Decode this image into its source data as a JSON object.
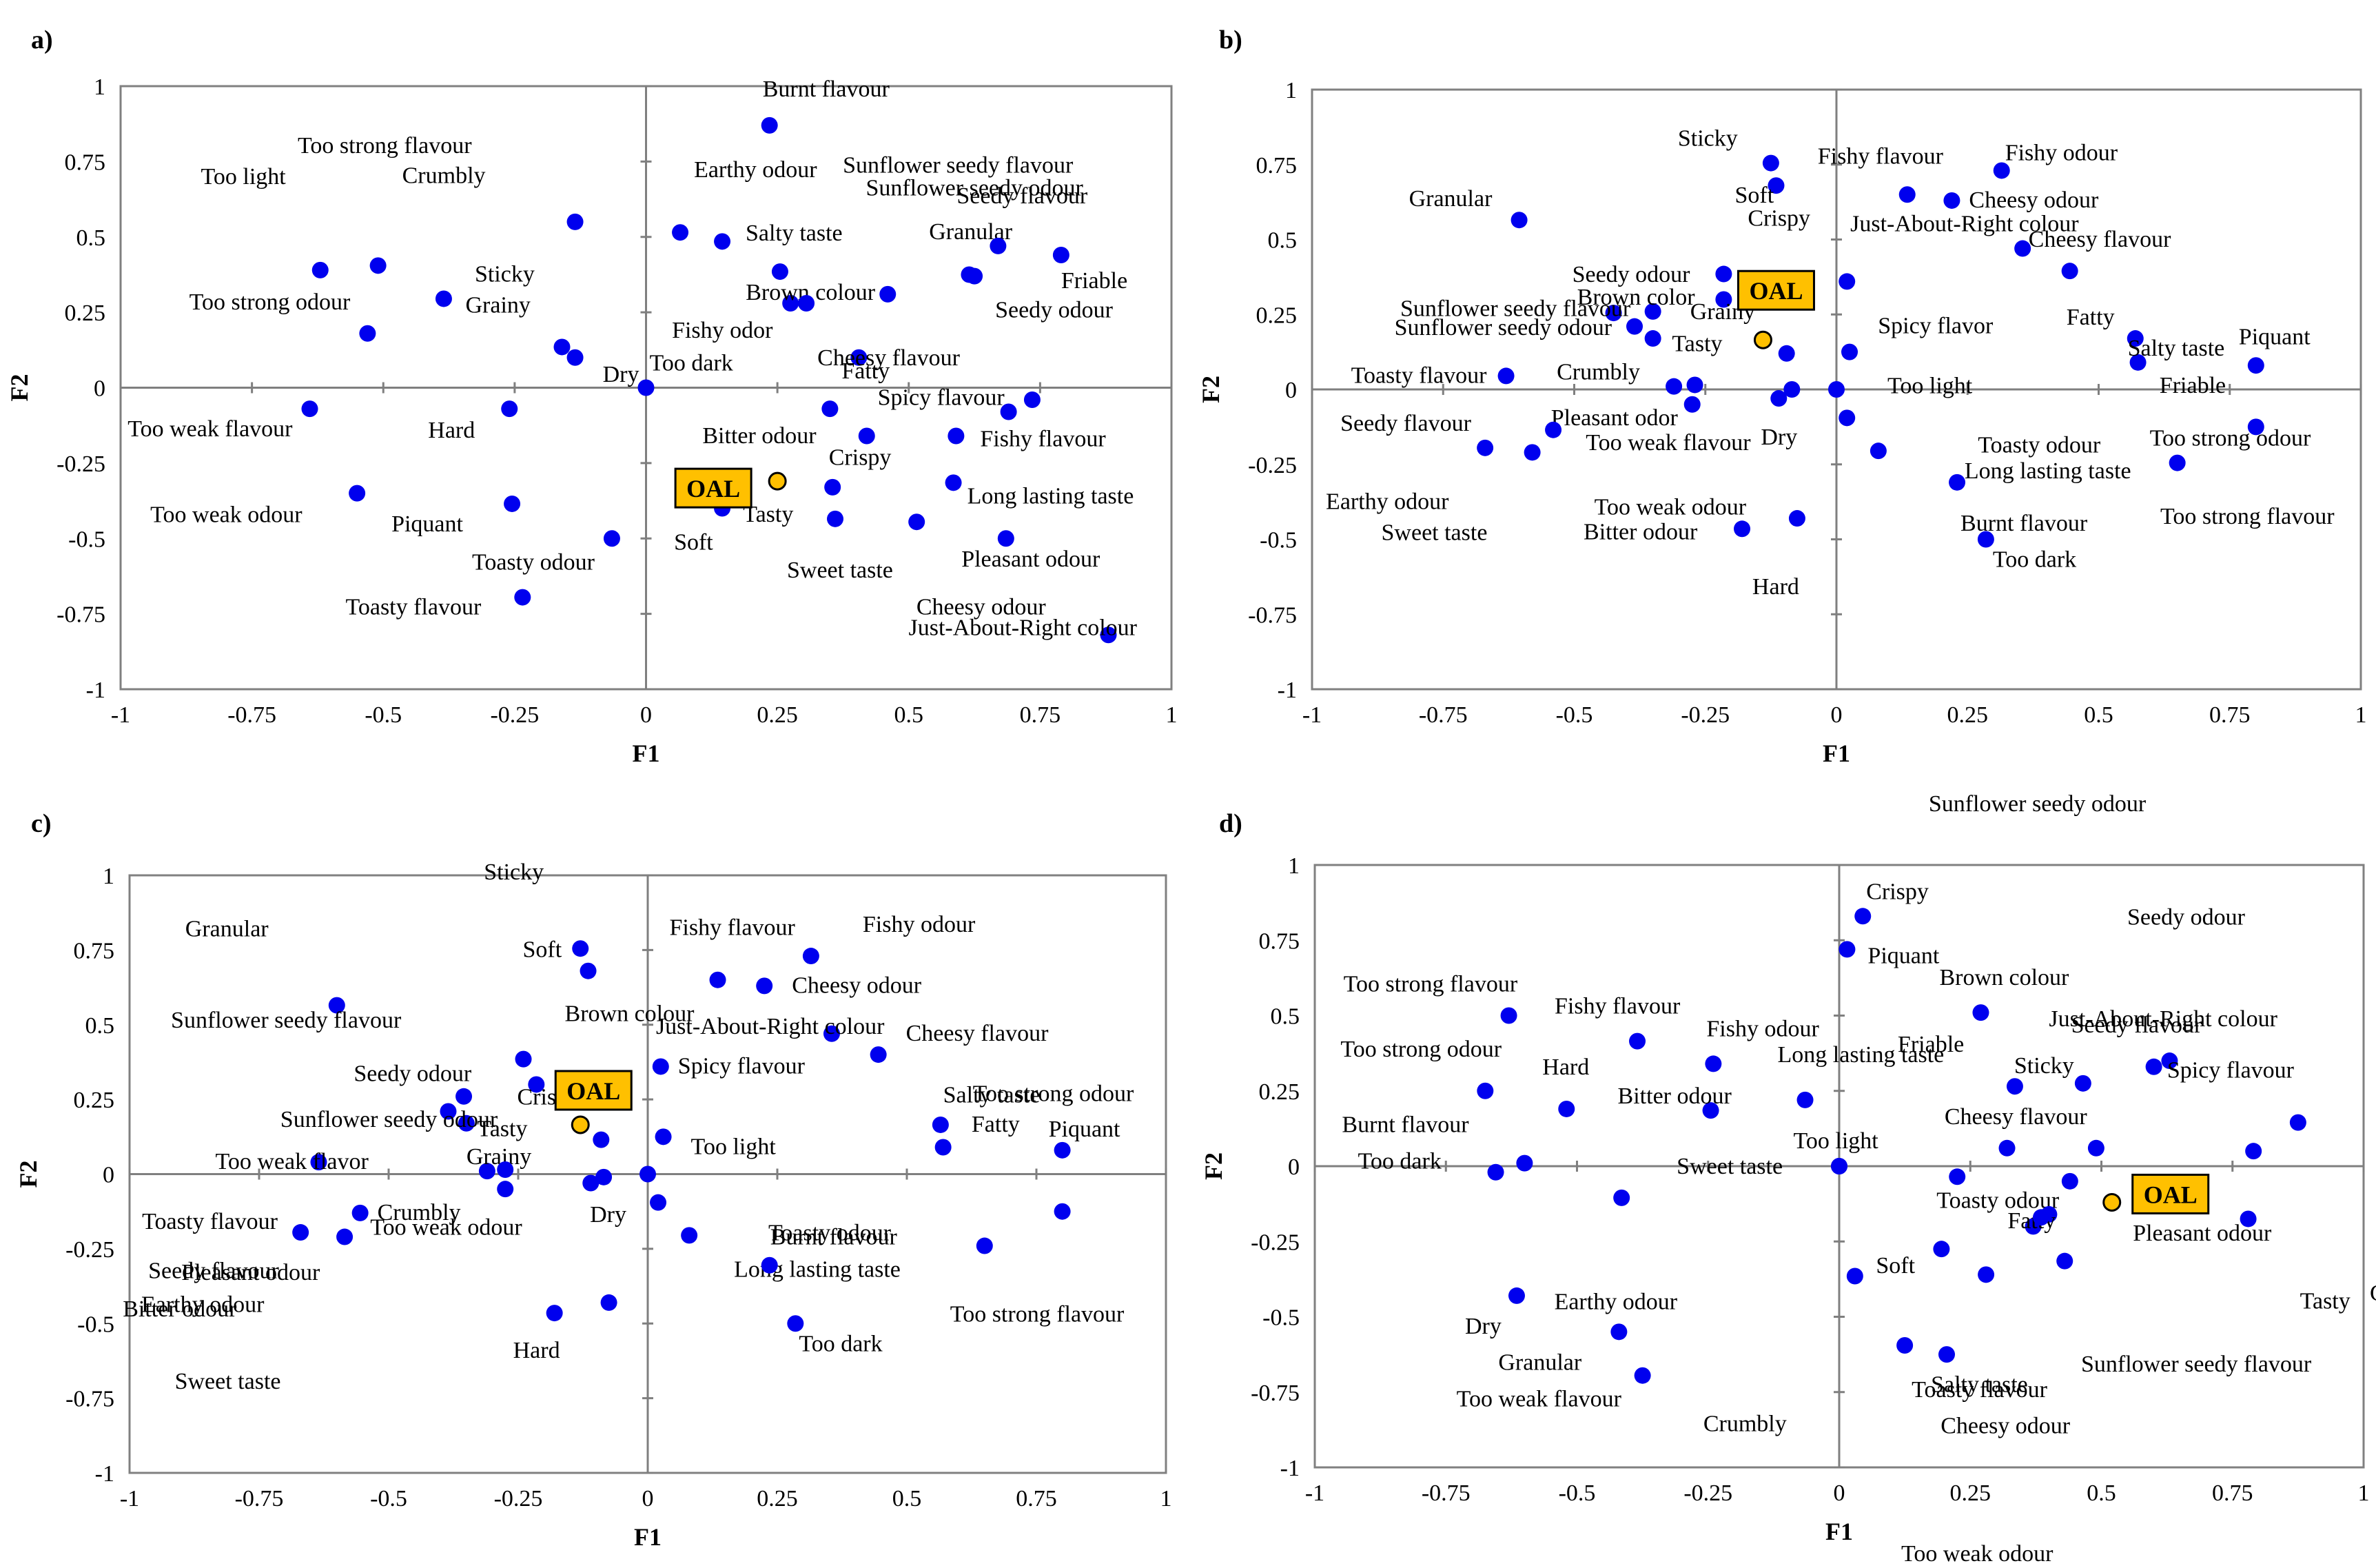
{
  "figure": {
    "panel_labels": [
      "a)",
      "b)",
      "c)",
      "d)"
    ]
  },
  "colors": {
    "point": "#0000ee",
    "oal_fill": "#ffc000",
    "oal_stroke": "#000000",
    "axis": "#7f7f7f",
    "frame": "#808080"
  },
  "chart_data": [
    {
      "type": "scatter",
      "panel": "a)",
      "xlabel": "F1",
      "ylabel": "F2",
      "xlim": [
        -1,
        1
      ],
      "ylim": [
        -1,
        1
      ],
      "xticks": [
        "-1",
        "-0.75",
        "-0.5",
        "-0.25",
        "0",
        "0.25",
        "0.5",
        "0.75",
        "1"
      ],
      "yticks": [
        "-1",
        "-0.75",
        "-0.5",
        "-0.25",
        "0",
        "0.25",
        "0.5",
        "0.75",
        "1"
      ],
      "highlight": {
        "label": "OAL",
        "x": 0.25,
        "y": -0.31
      },
      "points": [
        {
          "label": "Burnt flavour",
          "x": 0.235,
          "y": 0.87
        },
        {
          "label": "Too strong flavour",
          "x": -0.135,
          "y": 0.55
        },
        {
          "label": "Earthy odour",
          "x": 0.065,
          "y": 0.515
        },
        {
          "label": "Sunflower seedy flavour",
          "x": 0.145,
          "y": 0.485
        },
        {
          "label": "Too light",
          "x": -0.62,
          "y": 0.39
        },
        {
          "label": "Crumbly",
          "x": -0.51,
          "y": 0.405
        },
        {
          "label": "Salty taste",
          "x": 0.255,
          "y": 0.385
        },
        {
          "label": "Sunflower seedy odour",
          "x": 0.615,
          "y": 0.375
        },
        {
          "label": "Granular",
          "x": 0.46,
          "y": 0.31
        },
        {
          "label": "Seedy flavour",
          "x": 0.67,
          "y": 0.47
        },
        {
          "label": "Sticky",
          "x": -0.385,
          "y": 0.295
        },
        {
          "label": "Brown colour",
          "x": 0.275,
          "y": 0.28
        },
        {
          "label": "Friable",
          "x": 0.79,
          "y": 0.44
        },
        {
          "label": "Too strong odour",
          "x": -0.53,
          "y": 0.18
        },
        {
          "label": "Grainy",
          "x": -0.16,
          "y": 0.135
        },
        {
          "label": "Fishy odor",
          "x": 0.305,
          "y": 0.28
        },
        {
          "label": "Fatty",
          "x": 0.405,
          "y": 0.1
        },
        {
          "label": "Seedy odour",
          "x": 0.625,
          "y": 0.37
        },
        {
          "label": "Dry",
          "x": -0.135,
          "y": 0.1
        },
        {
          "label": "Too dark",
          "x": 0.0,
          "y": 0.0
        },
        {
          "label": "Cheesy flavour",
          "x": 0.735,
          "y": -0.04
        },
        {
          "label": "Too weak flavour",
          "x": -0.64,
          "y": -0.07
        },
        {
          "label": "Hard",
          "x": -0.26,
          "y": -0.07
        },
        {
          "label": "Bitter odour",
          "x": 0.35,
          "y": -0.07
        },
        {
          "label": "Spicy flavour",
          "x": 0.69,
          "y": -0.08
        },
        {
          "label": "Fishy flavour",
          "x": 0.59,
          "y": -0.16
        },
        {
          "label": "Crispy",
          "x": 0.42,
          "y": -0.16
        },
        {
          "label": "Too weak odour",
          "x": -0.55,
          "y": -0.35
        },
        {
          "label": "Piquant",
          "x": -0.255,
          "y": -0.385
        },
        {
          "label": "Tasty",
          "x": 0.355,
          "y": -0.33
        },
        {
          "label": "Long lasting taste",
          "x": 0.585,
          "y": -0.315
        },
        {
          "label": "Soft",
          "x": 0.145,
          "y": -0.4
        },
        {
          "label": "Toasty odour",
          "x": -0.065,
          "y": -0.5
        },
        {
          "label": "Sweet taste",
          "x": 0.36,
          "y": -0.435
        },
        {
          "label": "Pleasant odour",
          "x": 0.515,
          "y": -0.445
        },
        {
          "label": "Cheesy odour",
          "x": 0.685,
          "y": -0.5
        },
        {
          "label": "Toasty flavour",
          "x": -0.235,
          "y": -0.695
        },
        {
          "label": "Just-About-Right colour",
          "x": 0.88,
          "y": -0.82
        }
      ]
    },
    {
      "type": "scatter",
      "panel": "b)",
      "xlabel": "F1",
      "ylabel": "F2",
      "xlim": [
        -1,
        1
      ],
      "ylim": [
        -1,
        1
      ],
      "xticks": [
        "-1",
        "-0.75",
        "-0.5",
        "-0.25",
        "0",
        "0.25",
        "0.5",
        "0.75",
        "1"
      ],
      "yticks": [
        "-1",
        "-0.75",
        "-0.5",
        "-0.25",
        "0",
        "0.25",
        "0.5",
        "0.75",
        "1"
      ],
      "highlight": {
        "label": "OAL",
        "x": -0.14,
        "y": 0.165
      },
      "points": [
        {
          "label": "Sticky",
          "x": -0.125,
          "y": 0.755
        },
        {
          "label": "Soft",
          "x": -0.115,
          "y": 0.68
        },
        {
          "label": "Fishy flavour",
          "x": 0.135,
          "y": 0.65
        },
        {
          "label": "Fishy odour",
          "x": 0.315,
          "y": 0.73
        },
        {
          "label": "Cheesy odour",
          "x": 0.22,
          "y": 0.63
        },
        {
          "label": "Granular",
          "x": -0.605,
          "y": 0.565
        },
        {
          "label": "Crispy",
          "x": -0.215,
          "y": 0.385
        },
        {
          "label": "Just-About-Right colour",
          "x": 0.355,
          "y": 0.47
        },
        {
          "label": "Cheesy flavour",
          "x": 0.445,
          "y": 0.395
        },
        {
          "label": "Brown color",
          "x": -0.35,
          "y": 0.26
        },
        {
          "label": "Seedy odour",
          "x": -0.425,
          "y": 0.255
        },
        {
          "label": "Sunflower seedy flavour",
          "x": -0.385,
          "y": 0.21
        },
        {
          "label": "Sunflower seedy odour",
          "x": -0.35,
          "y": 0.17
        },
        {
          "label": "Tasty",
          "x": -0.215,
          "y": 0.3
        },
        {
          "label": "Spicy flavor",
          "x": 0.02,
          "y": 0.36
        },
        {
          "label": "Fatty",
          "x": 0.57,
          "y": 0.17
        },
        {
          "label": "Too light",
          "x": 0.025,
          "y": 0.125
        },
        {
          "label": "Salty taste",
          "x": 0.575,
          "y": 0.09
        },
        {
          "label": "Friable",
          "x": 0.8,
          "y": 0.08
        },
        {
          "label": "Piquant",
          "x": 0.8,
          "y": -0.125
        },
        {
          "label": "Toasty flavour",
          "x": -0.63,
          "y": 0.045
        },
        {
          "label": "Crumbly",
          "x": -0.31,
          "y": 0.01
        },
        {
          "label": "Grainy",
          "x": -0.095,
          "y": 0.12
        },
        {
          "label": "Pleasant odor",
          "x": -0.275,
          "y": -0.05
        },
        {
          "label": "Dry",
          "x": -0.085,
          "y": 0.0
        },
        {
          "label": "Too weak flavour",
          "x": -0.11,
          "y": -0.03
        },
        {
          "label": "Toasty odour",
          "x": 0.02,
          "y": -0.095
        },
        {
          "label": "Seedy flavour",
          "x": -0.67,
          "y": -0.195
        },
        {
          "label": "Too weak odour",
          "x": -0.58,
          "y": -0.21
        },
        {
          "label": "Earthy odour",
          "x": -0.54,
          "y": -0.135
        },
        {
          "label": "Long lasting taste",
          "x": 0.08,
          "y": -0.205
        },
        {
          "label": "Too strong odour",
          "x": 0.65,
          "y": -0.245
        },
        {
          "label": "Burnt flavour",
          "x": 0.23,
          "y": -0.31
        },
        {
          "label": "Too dark",
          "x": 0.285,
          "y": -0.5
        },
        {
          "label": "Bitter odour",
          "x": -0.18,
          "y": -0.465
        },
        {
          "label": "Hard",
          "x": -0.075,
          "y": -0.43
        },
        {
          "label": "Sweet taste",
          "x": -0.27,
          "y": 0.015
        },
        {
          "label": "Too strong flavour",
          "x": 0.0,
          "y": 0.0
        }
      ]
    },
    {
      "type": "scatter",
      "panel": "c)",
      "xlabel": "F1",
      "ylabel": "F2",
      "xlim": [
        -1,
        1
      ],
      "ylim": [
        -1,
        1
      ],
      "xticks": [
        "-1",
        "-0.75",
        "-0.5",
        "-0.25",
        "0",
        "0.25",
        "0.5",
        "0.75",
        "1"
      ],
      "yticks": [
        "-1",
        "-0.75",
        "-0.5",
        "-0.25",
        "0",
        "0.25",
        "0.5",
        "0.75",
        "1"
      ],
      "highlight": {
        "label": "OAL",
        "x": -0.13,
        "y": 0.165
      },
      "points": [
        {
          "label": "Sticky",
          "x": -0.13,
          "y": 0.755
        },
        {
          "label": "Soft",
          "x": -0.115,
          "y": 0.68
        },
        {
          "label": "Fishy flavour",
          "x": 0.135,
          "y": 0.65
        },
        {
          "label": "Fishy odour",
          "x": 0.315,
          "y": 0.73
        },
        {
          "label": "Cheesy odour",
          "x": 0.225,
          "y": 0.63
        },
        {
          "label": "Granular",
          "x": -0.6,
          "y": 0.565
        },
        {
          "label": "Just-About-Right colour",
          "x": 0.355,
          "y": 0.47
        },
        {
          "label": "Cheesy flavour",
          "x": 0.445,
          "y": 0.4
        },
        {
          "label": "Brown colour",
          "x": -0.24,
          "y": 0.385
        },
        {
          "label": "Seedy odour",
          "x": -0.215,
          "y": 0.3
        },
        {
          "label": "Sunflower seedy flavour",
          "x": -0.355,
          "y": 0.26
        },
        {
          "label": "Crispy",
          "x": -0.385,
          "y": 0.21
        },
        {
          "label": "Sunflower seedy odour",
          "x": -0.35,
          "y": 0.17
        },
        {
          "label": "Spicy flavour",
          "x": 0.025,
          "y": 0.36
        },
        {
          "label": "Fatty",
          "x": 0.565,
          "y": 0.165
        },
        {
          "label": "Too light",
          "x": 0.03,
          "y": 0.125
        },
        {
          "label": "Salty taste",
          "x": 0.57,
          "y": 0.09
        },
        {
          "label": "Piquant",
          "x": 0.8,
          "y": 0.08
        },
        {
          "label": "Tasty",
          "x": -0.09,
          "y": 0.115
        },
        {
          "label": "Grainy",
          "x": -0.31,
          "y": 0.01
        },
        {
          "label": "Too weak flavor",
          "x": -0.635,
          "y": 0.04
        },
        {
          "label": "Dry",
          "x": -0.085,
          "y": -0.01
        },
        {
          "label": "Too weak odour",
          "x": -0.11,
          "y": -0.03
        },
        {
          "label": "Crumbly",
          "x": -0.555,
          "y": -0.13
        },
        {
          "label": "Toasty flavour",
          "x": -0.67,
          "y": -0.195
        },
        {
          "label": "Seedy flavour",
          "x": -0.585,
          "y": -0.21
        },
        {
          "label": "Pleasant odour",
          "x": -0.275,
          "y": 0.015
        },
        {
          "label": "Bitter odour",
          "x": -0.275,
          "y": -0.05
        },
        {
          "label": "Toasty odour",
          "x": 0.02,
          "y": -0.095
        },
        {
          "label": "Long lasting taste",
          "x": 0.08,
          "y": -0.205
        },
        {
          "label": "Too strong odour",
          "x": 0.8,
          "y": -0.125
        },
        {
          "label": "Too strong flavour",
          "x": 0.65,
          "y": -0.24
        },
        {
          "label": "Burnt flavour",
          "x": 0.235,
          "y": -0.305
        },
        {
          "label": "Too dark",
          "x": 0.285,
          "y": -0.5
        },
        {
          "label": "Hard",
          "x": -0.18,
          "y": -0.465
        },
        {
          "label": "Sweet taste",
          "x": -0.075,
          "y": -0.43
        },
        {
          "label": "Earthy odour",
          "x": 0.0,
          "y": 0.0
        }
      ]
    },
    {
      "type": "scatter",
      "panel": "d)",
      "xlabel": "F1",
      "ylabel": "F2",
      "xlim": [
        -1,
        1
      ],
      "ylim": [
        -1,
        1
      ],
      "xticks": [
        "-1",
        "-0.75",
        "-0.5",
        "-0.25",
        "0",
        "0.25",
        "0.5",
        "0.75",
        "1"
      ],
      "yticks": [
        "-1",
        "-0.75",
        "-0.5",
        "-0.25",
        "0",
        "0.25",
        "0.5",
        "0.75",
        "1"
      ],
      "highlight": {
        "label": "OAL",
        "x": 0.52,
        "y": -0.12
      },
      "points": [
        {
          "label": "Crispy",
          "x": 0.045,
          "y": 0.83
        },
        {
          "label": "Piquant",
          "x": 0.015,
          "y": 0.72
        },
        {
          "label": "Too strong flavour",
          "x": -0.63,
          "y": 0.5
        },
        {
          "label": "Fishy flavour",
          "x": -0.385,
          "y": 0.415
        },
        {
          "label": "Fishy odour",
          "x": -0.24,
          "y": 0.34
        },
        {
          "label": "Brown colour",
          "x": 0.27,
          "y": 0.51
        },
        {
          "label": "Seedy flavour",
          "x": 0.6,
          "y": 0.33
        },
        {
          "label": "Just-About-Right colour",
          "x": 0.63,
          "y": 0.35
        },
        {
          "label": "Too strong odour",
          "x": -0.675,
          "y": 0.25
        },
        {
          "label": "Hard",
          "x": -0.52,
          "y": 0.19
        },
        {
          "label": "Long lasting taste",
          "x": -0.065,
          "y": 0.22
        },
        {
          "label": "Friable",
          "x": 0.335,
          "y": 0.265
        },
        {
          "label": "Sticky",
          "x": 0.465,
          "y": 0.275
        },
        {
          "label": "Bitter odour",
          "x": -0.245,
          "y": 0.185
        },
        {
          "label": "Spicy flavour",
          "x": 0.875,
          "y": 0.145
        },
        {
          "label": "Cheesy flavour",
          "x": 0.49,
          "y": 0.06
        },
        {
          "label": "Too light",
          "x": 0.32,
          "y": 0.06
        },
        {
          "label": "Burnt flavour",
          "x": -0.6,
          "y": 0.01
        },
        {
          "label": "Too dark",
          "x": -0.655,
          "y": -0.02
        },
        {
          "label": "Pleasant odour",
          "x": 0.79,
          "y": 0.05
        },
        {
          "label": "Toasty odour",
          "x": 0.225,
          "y": -0.035
        },
        {
          "label": "Sweet taste",
          "x": -0.415,
          "y": -0.105
        },
        {
          "label": "Tasty",
          "x": 0.78,
          "y": -0.175
        },
        {
          "label": "Earthy odour",
          "x": 0.37,
          "y": -0.2
        },
        {
          "label": "Soft",
          "x": 0.195,
          "y": -0.275
        },
        {
          "label": "Fatty",
          "x": 0.4,
          "y": -0.16
        },
        {
          "label": "Crumbly",
          "x": 0.03,
          "y": -0.365
        },
        {
          "label": "Salty taste",
          "x": 0.28,
          "y": -0.36
        },
        {
          "label": "Cheesy odour",
          "x": 0.43,
          "y": -0.315
        },
        {
          "label": "Sunflower seedy odour",
          "x": 0.44,
          "y": -0.05
        },
        {
          "label": "Seedy odour",
          "x": 0.385,
          "y": -0.17
        },
        {
          "label": "Grainy",
          "x": 0.0,
          "y": 0.0
        },
        {
          "label": "Dry",
          "x": -0.615,
          "y": -0.43
        },
        {
          "label": "Granular",
          "x": -0.42,
          "y": -0.55
        },
        {
          "label": "Too weak flavour",
          "x": -0.375,
          "y": -0.695
        },
        {
          "label": "Toasty flavour",
          "x": 0.125,
          "y": -0.595
        },
        {
          "label": "Sunflower seedy flavour",
          "x": 0.205,
          "y": -0.625
        },
        {
          "label": "Too weak odour",
          "x": 0.0,
          "y": 0.0
        }
      ]
    }
  ]
}
